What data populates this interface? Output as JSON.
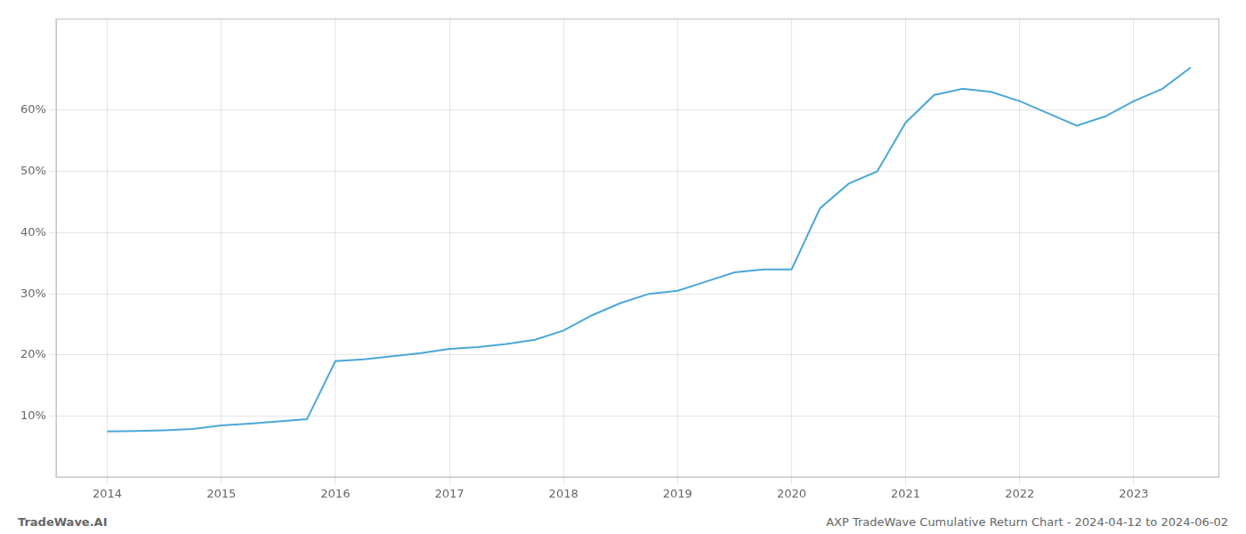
{
  "chart_data": {
    "type": "line",
    "title": "AXP TradeWave Cumulative Return Chart - 2024-04-12 to 2024-06-02",
    "annotations": [
      "TradeWave.AI"
    ],
    "x": [
      2014.0,
      2014.25,
      2014.5,
      2014.75,
      2015.0,
      2015.25,
      2015.75,
      2016.0,
      2016.25,
      2016.5,
      2016.75,
      2017.0,
      2017.25,
      2017.5,
      2017.75,
      2018.0,
      2018.25,
      2018.5,
      2018.75,
      2019.0,
      2019.25,
      2019.5,
      2019.75,
      2020.0,
      2020.25,
      2020.5,
      2020.75,
      2021.0,
      2021.25,
      2021.5,
      2021.75,
      2022.0,
      2022.25,
      2022.5,
      2022.75,
      2023.0,
      2023.25,
      2023.5
    ],
    "values": [
      7.5,
      7.6,
      7.7,
      7.9,
      8.5,
      8.8,
      9.5,
      19.0,
      19.3,
      19.8,
      20.3,
      21.0,
      21.3,
      21.8,
      22.5,
      24.0,
      26.5,
      28.5,
      30.0,
      30.5,
      32.0,
      33.5,
      34.0,
      34.0,
      44.0,
      48.0,
      50.0,
      58.0,
      62.5,
      63.5,
      63.0,
      61.5,
      59.5,
      57.5,
      59.0,
      61.5,
      63.5,
      67.0
    ],
    "color": "#4aa8d8",
    "xlim": [
      2013.55,
      2023.75
    ],
    "xticks": [
      2014,
      2015,
      2016,
      2017,
      2018,
      2019,
      2020,
      2021,
      2022,
      2023
    ],
    "ylim": [
      0,
      75
    ],
    "yticks": [
      {
        "value": 10,
        "label": "10%"
      },
      {
        "value": 20,
        "label": "20%"
      },
      {
        "value": 30,
        "label": "30%"
      },
      {
        "value": 40,
        "label": "40%"
      },
      {
        "value": 50,
        "label": "50%"
      },
      {
        "value": 60,
        "label": "60%"
      }
    ],
    "grid": true
  }
}
